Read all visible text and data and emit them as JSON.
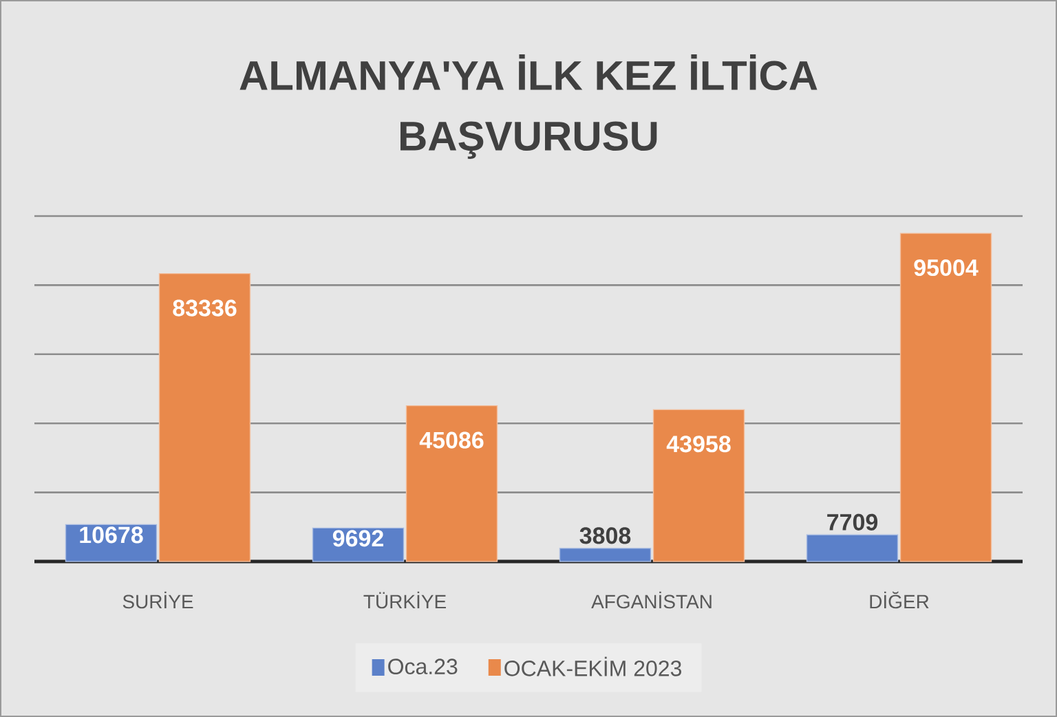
{
  "chart_data": {
    "type": "bar",
    "title": "ALMANYA'YA İLK KEZ İLTİCA BAŞVURUSU",
    "categories": [
      "SURİYE",
      "TÜRKİYE",
      "AFGANİSTAN",
      "DİĞER"
    ],
    "series": [
      {
        "name": "Oca.23",
        "color": "#5b80c9",
        "values": [
          10678,
          9692,
          3808,
          7709
        ]
      },
      {
        "name": "OCAK-EKİM 2023",
        "color": "#e9894b",
        "values": [
          83336,
          45086,
          43958,
          95004
        ]
      }
    ],
    "ylim": [
      0,
      100000
    ],
    "yticks": [
      {
        "value": 0,
        "label": null
      },
      {
        "value": 20000,
        "label": null
      },
      {
        "value": 40000,
        "label": null
      },
      {
        "value": 60000,
        "label": null
      },
      {
        "value": 80000,
        "label": null
      },
      {
        "value": 100000,
        "label": null
      }
    ],
    "grid": "y",
    "legend": "bottom",
    "data_labels": true,
    "tick_labels": "x"
  }
}
